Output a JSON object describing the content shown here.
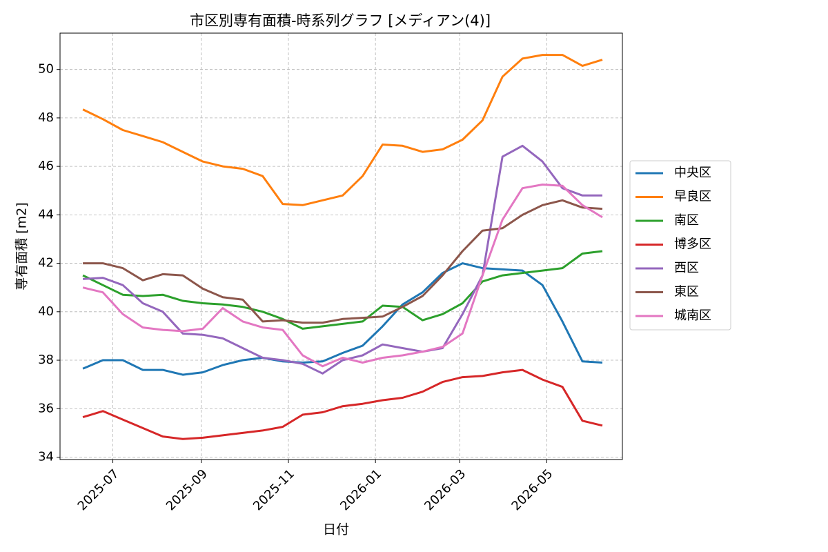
{
  "chart_data": {
    "type": "line",
    "title": "市区別専有面積-時系列グラフ [メディアン(4)]",
    "x_label": "日付",
    "y_label": "専有面積 [m2]",
    "x": [
      "2025-06-10",
      "2025-06-24",
      "2025-07-08",
      "2025-07-22",
      "2025-08-05",
      "2025-08-19",
      "2025-09-02",
      "2025-09-16",
      "2025-09-30",
      "2025-10-14",
      "2025-10-28",
      "2025-11-11",
      "2025-11-25",
      "2025-12-09",
      "2025-12-23",
      "2026-01-06",
      "2026-01-20",
      "2026-02-03",
      "2026-02-17",
      "2026-03-03",
      "2026-03-17",
      "2026-03-31",
      "2026-04-14",
      "2026-04-28",
      "2026-05-12",
      "2026-05-26",
      "2026-06-09"
    ],
    "xlim": [
      "2025-05-25",
      "2026-06-23"
    ],
    "xticks": [
      {
        "value": "2025-07-01",
        "label": "2025-07"
      },
      {
        "value": "2025-09-01",
        "label": "2025-09"
      },
      {
        "value": "2025-11-01",
        "label": "2025-11"
      },
      {
        "value": "2026-01-01",
        "label": "2026-01"
      },
      {
        "value": "2026-03-01",
        "label": "2026-03"
      },
      {
        "value": "2026-05-01",
        "label": "2026-05"
      }
    ],
    "ylim": [
      33.9,
      51.5
    ],
    "yticks": [
      34,
      36,
      38,
      40,
      42,
      44,
      46,
      48,
      50
    ],
    "grid": true,
    "legend": "outside-right",
    "series": [
      {
        "name": "中央区",
        "color": "#1f77b4",
        "values": [
          37.65,
          38.0,
          38.0,
          37.6,
          37.6,
          37.4,
          37.5,
          37.8,
          38.0,
          38.1,
          37.95,
          37.9,
          37.95,
          38.3,
          38.6,
          39.4,
          40.3,
          40.8,
          41.6,
          42.0,
          41.8,
          41.75,
          41.7,
          41.1,
          39.6,
          37.95,
          37.9
        ]
      },
      {
        "name": "早良区",
        "color": "#ff7f0e",
        "values": [
          48.35,
          47.95,
          47.5,
          47.25,
          47.0,
          46.6,
          46.2,
          46.0,
          45.9,
          45.6,
          44.45,
          44.4,
          44.6,
          44.8,
          45.6,
          46.9,
          46.85,
          46.6,
          46.7,
          47.1,
          47.9,
          49.7,
          50.45,
          50.6,
          50.6,
          50.15,
          50.4
        ]
      },
      {
        "name": "南区",
        "color": "#2ca02c",
        "values": [
          41.5,
          41.1,
          40.7,
          40.65,
          40.7,
          40.45,
          40.35,
          40.3,
          40.2,
          40.0,
          39.7,
          39.3,
          39.4,
          39.5,
          39.6,
          40.25,
          40.2,
          39.65,
          39.9,
          40.35,
          41.25,
          41.5,
          41.6,
          41.7,
          41.8,
          42.4,
          42.5
        ]
      },
      {
        "name": "博多区",
        "color": "#d62728",
        "values": [
          35.65,
          35.9,
          35.55,
          35.2,
          34.85,
          34.75,
          34.8,
          34.9,
          35.0,
          35.1,
          35.25,
          35.75,
          35.85,
          36.1,
          36.2,
          36.35,
          36.45,
          36.7,
          37.1,
          37.3,
          37.35,
          37.5,
          37.6,
          37.2,
          36.9,
          35.5,
          35.3
        ]
      },
      {
        "name": "西区",
        "color": "#9467bd",
        "values": [
          41.35,
          41.4,
          41.1,
          40.35,
          40.0,
          39.1,
          39.05,
          38.9,
          38.5,
          38.1,
          38.0,
          37.85,
          37.45,
          38.0,
          38.2,
          38.65,
          38.5,
          38.35,
          38.5,
          39.9,
          41.5,
          46.4,
          46.85,
          46.2,
          45.1,
          44.8,
          44.8
        ]
      },
      {
        "name": "東区",
        "color": "#8c564b",
        "values": [
          42.0,
          42.0,
          41.8,
          41.3,
          41.55,
          41.5,
          40.95,
          40.6,
          40.5,
          39.6,
          39.65,
          39.55,
          39.55,
          39.7,
          39.75,
          39.8,
          40.2,
          40.65,
          41.5,
          42.5,
          43.35,
          43.45,
          44.0,
          44.4,
          44.6,
          44.3,
          44.25
        ]
      },
      {
        "name": "城南区",
        "color": "#e377c2",
        "values": [
          41.0,
          40.8,
          39.9,
          39.35,
          39.25,
          39.2,
          39.3,
          40.15,
          39.6,
          39.35,
          39.25,
          38.2,
          37.75,
          38.1,
          37.9,
          38.1,
          38.2,
          38.35,
          38.55,
          39.1,
          41.5,
          43.8,
          45.1,
          45.25,
          45.2,
          44.4,
          43.9
        ]
      }
    ]
  }
}
